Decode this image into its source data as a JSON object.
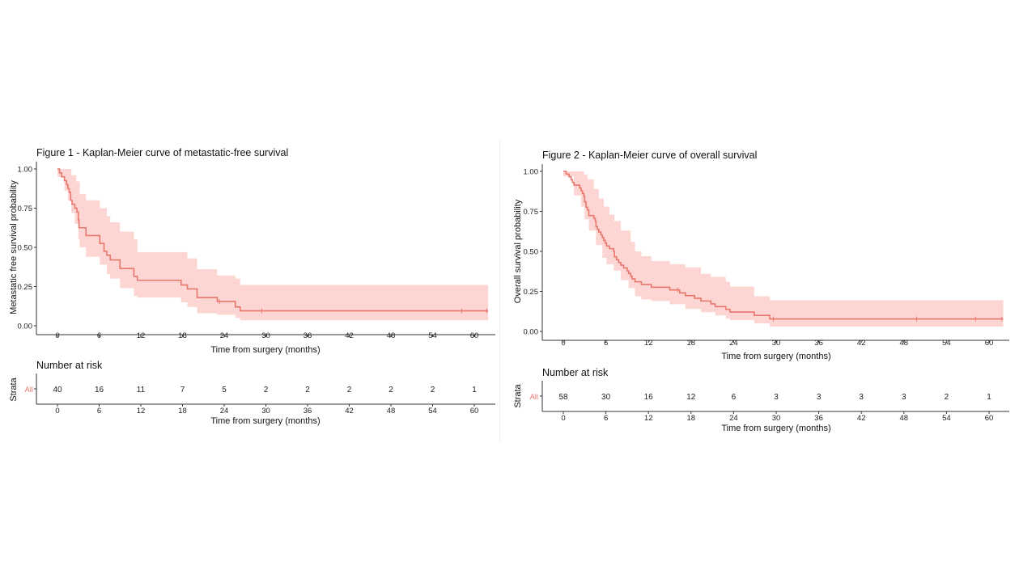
{
  "chart_data": [
    {
      "type": "line",
      "subtype": "kaplan-meier",
      "title": "Figure 1 - Kaplan-Meier curve of metastatic-free survival",
      "xlabel": "Time from surgery (months)",
      "ylabel": "Metastatic free survival probability",
      "xlim": [
        -3,
        63
      ],
      "ylim": [
        0,
        1
      ],
      "xticks": [
        0,
        6,
        12,
        18,
        24,
        30,
        36,
        42,
        48,
        54,
        60
      ],
      "yticks": [
        "0.00",
        "0.25",
        "0.50",
        "0.75",
        "1.00"
      ],
      "line_color": "#e8776d",
      "ci_color": "#fdd5d3",
      "grid": false,
      "series": [
        {
          "name": "All",
          "steps": [
            [
              0,
              1.0
            ],
            [
              0.3,
              0.975
            ],
            [
              0.6,
              0.95
            ],
            [
              1.0,
              0.925
            ],
            [
              1.3,
              0.9
            ],
            [
              1.5,
              0.875
            ],
            [
              1.7,
              0.85
            ],
            [
              1.9,
              0.8
            ],
            [
              2.1,
              0.775
            ],
            [
              2.5,
              0.75
            ],
            [
              2.8,
              0.725
            ],
            [
              3.0,
              0.675
            ],
            [
              3.1,
              0.625
            ],
            [
              4.1,
              0.575
            ],
            [
              6.1,
              0.525
            ],
            [
              6.7,
              0.475
            ],
            [
              7.1,
              0.45
            ],
            [
              7.6,
              0.42
            ],
            [
              9.0,
              0.365
            ],
            [
              11.0,
              0.315
            ],
            [
              11.5,
              0.29
            ],
            [
              17.8,
              0.26
            ],
            [
              18.7,
              0.235
            ],
            [
              20.1,
              0.18
            ],
            [
              23.0,
              0.155
            ],
            [
              25.6,
              0.12
            ],
            [
              26.3,
              0.095
            ],
            [
              62.0,
              0.095
            ]
          ],
          "ci_lower": [
            [
              0,
              0.95
            ],
            [
              1.0,
              0.86
            ],
            [
              1.5,
              0.8
            ],
            [
              2.0,
              0.72
            ],
            [
              2.5,
              0.65
            ],
            [
              3.0,
              0.55
            ],
            [
              3.2,
              0.5
            ],
            [
              4.1,
              0.44
            ],
            [
              6.1,
              0.39
            ],
            [
              7.1,
              0.33
            ],
            [
              7.6,
              0.3
            ],
            [
              9.0,
              0.24
            ],
            [
              11.0,
              0.19
            ],
            [
              11.5,
              0.18
            ],
            [
              17.8,
              0.15
            ],
            [
              18.7,
              0.12
            ],
            [
              20.1,
              0.08
            ],
            [
              23.0,
              0.07
            ],
            [
              25.6,
              0.05
            ],
            [
              26.3,
              0.035
            ],
            [
              62.0,
              0.035
            ]
          ],
          "ci_upper": [
            [
              0,
              1.0
            ],
            [
              1.4,
              1.0
            ],
            [
              2.0,
              0.96
            ],
            [
              2.7,
              0.92
            ],
            [
              3.2,
              0.84
            ],
            [
              4.1,
              0.8
            ],
            [
              6.1,
              0.75
            ],
            [
              7.1,
              0.7
            ],
            [
              7.6,
              0.66
            ],
            [
              9.0,
              0.6
            ],
            [
              11.0,
              0.55
            ],
            [
              11.5,
              0.47
            ],
            [
              17.8,
              0.47
            ],
            [
              18.7,
              0.43
            ],
            [
              20.1,
              0.36
            ],
            [
              23.0,
              0.32
            ],
            [
              25.6,
              0.3
            ],
            [
              26.3,
              0.26
            ],
            [
              62.0,
              0.26
            ]
          ],
          "censored": [
            [
              23.3,
              0.155
            ],
            [
              29.4,
              0.095
            ],
            [
              58.2,
              0.095
            ],
            [
              61.8,
              0.095
            ]
          ]
        }
      ],
      "risk_table": {
        "title": "Number at risk",
        "ylabel": "Strata",
        "strata_label": "All",
        "times": [
          0,
          6,
          12,
          18,
          24,
          30,
          36,
          42,
          48,
          54,
          60
        ],
        "counts": [
          40,
          16,
          11,
          7,
          5,
          2,
          2,
          2,
          2,
          2,
          1
        ],
        "xlabel": "Time from surgery (months)"
      }
    },
    {
      "type": "line",
      "subtype": "kaplan-meier",
      "title": "Figure 2 - Kaplan-Meier curve of overall survival",
      "xlabel": "Time from surgery (months)",
      "ylabel": "Overall survival probability",
      "xlim": [
        -3,
        63
      ],
      "ylim": [
        0,
        1
      ],
      "xticks": [
        0,
        6,
        12,
        18,
        24,
        30,
        36,
        42,
        48,
        54,
        60
      ],
      "yticks": [
        "0.00",
        "0.25",
        "0.50",
        "0.75",
        "1.00"
      ],
      "line_color": "#e8776d",
      "ci_color": "#fdd5d3",
      "grid": false,
      "series": [
        {
          "name": "All",
          "steps": [
            [
              0,
              1.0
            ],
            [
              0.4,
              0.983
            ],
            [
              0.8,
              0.966
            ],
            [
              1.1,
              0.948
            ],
            [
              1.3,
              0.931
            ],
            [
              1.5,
              0.914
            ],
            [
              2.3,
              0.897
            ],
            [
              2.5,
              0.879
            ],
            [
              2.7,
              0.862
            ],
            [
              2.9,
              0.845
            ],
            [
              3.0,
              0.81
            ],
            [
              3.2,
              0.776
            ],
            [
              3.4,
              0.759
            ],
            [
              3.6,
              0.724
            ],
            [
              4.3,
              0.707
            ],
            [
              4.5,
              0.69
            ],
            [
              4.6,
              0.655
            ],
            [
              4.8,
              0.638
            ],
            [
              5.0,
              0.621
            ],
            [
              5.3,
              0.603
            ],
            [
              5.5,
              0.586
            ],
            [
              5.7,
              0.569
            ],
            [
              5.9,
              0.552
            ],
            [
              6.1,
              0.534
            ],
            [
              6.5,
              0.517
            ],
            [
              7.1,
              0.5
            ],
            [
              7.2,
              0.466
            ],
            [
              7.5,
              0.448
            ],
            [
              7.8,
              0.431
            ],
            [
              8.1,
              0.414
            ],
            [
              8.5,
              0.397
            ],
            [
              9.0,
              0.379
            ],
            [
              9.2,
              0.362
            ],
            [
              9.5,
              0.345
            ],
            [
              9.7,
              0.328
            ],
            [
              10.1,
              0.31
            ],
            [
              11.0,
              0.293
            ],
            [
              12.4,
              0.276
            ],
            [
              15.0,
              0.259
            ],
            [
              16.1,
              0.259
            ],
            [
              16.4,
              0.241
            ],
            [
              17.2,
              0.224
            ],
            [
              18.5,
              0.207
            ],
            [
              19.4,
              0.19
            ],
            [
              20.8,
              0.172
            ],
            [
              21.4,
              0.155
            ],
            [
              22.9,
              0.138
            ],
            [
              23.5,
              0.121
            ],
            [
              26.9,
              0.1
            ],
            [
              29.1,
              0.078
            ],
            [
              62.0,
              0.078
            ]
          ],
          "ci_lower": [
            [
              0,
              0.97
            ],
            [
              1.5,
              0.85
            ],
            [
              2.5,
              0.78
            ],
            [
              3.0,
              0.7
            ],
            [
              3.6,
              0.63
            ],
            [
              4.6,
              0.54
            ],
            [
              5.5,
              0.46
            ],
            [
              6.1,
              0.42
            ],
            [
              7.1,
              0.38
            ],
            [
              8.1,
              0.32
            ],
            [
              9.2,
              0.27
            ],
            [
              10.1,
              0.22
            ],
            [
              11.0,
              0.2
            ],
            [
              12.4,
              0.19
            ],
            [
              15.0,
              0.17
            ],
            [
              17.2,
              0.14
            ],
            [
              19.4,
              0.12
            ],
            [
              21.4,
              0.1
            ],
            [
              22.9,
              0.08
            ],
            [
              23.5,
              0.07
            ],
            [
              26.9,
              0.05
            ],
            [
              29.1,
              0.03
            ],
            [
              62.0,
              0.03
            ]
          ],
          "ci_upper": [
            [
              0,
              1.0
            ],
            [
              2.4,
              1.0
            ],
            [
              2.9,
              0.98
            ],
            [
              3.4,
              0.95
            ],
            [
              4.3,
              0.89
            ],
            [
              5.0,
              0.83
            ],
            [
              5.7,
              0.78
            ],
            [
              6.5,
              0.73
            ],
            [
              7.2,
              0.69
            ],
            [
              8.1,
              0.63
            ],
            [
              9.5,
              0.56
            ],
            [
              10.1,
              0.5
            ],
            [
              11.0,
              0.47
            ],
            [
              12.4,
              0.44
            ],
            [
              15.0,
              0.42
            ],
            [
              17.2,
              0.4
            ],
            [
              19.4,
              0.36
            ],
            [
              20.8,
              0.34
            ],
            [
              22.9,
              0.31
            ],
            [
              23.5,
              0.28
            ],
            [
              26.9,
              0.22
            ],
            [
              29.1,
              0.195
            ],
            [
              62.0,
              0.195
            ]
          ],
          "censored": [
            [
              16.1,
              0.259
            ],
            [
              29.6,
              0.078
            ],
            [
              49.8,
              0.078
            ],
            [
              58.1,
              0.078
            ],
            [
              61.8,
              0.078
            ]
          ]
        }
      ],
      "risk_table": {
        "title": "Number at risk",
        "ylabel": "Strata",
        "strata_label": "All",
        "times": [
          0,
          6,
          12,
          18,
          24,
          30,
          36,
          42,
          48,
          54,
          60
        ],
        "counts": [
          58,
          30,
          16,
          12,
          6,
          3,
          3,
          3,
          3,
          2,
          1
        ],
        "xlabel": "Time from surgery (months)"
      }
    }
  ]
}
